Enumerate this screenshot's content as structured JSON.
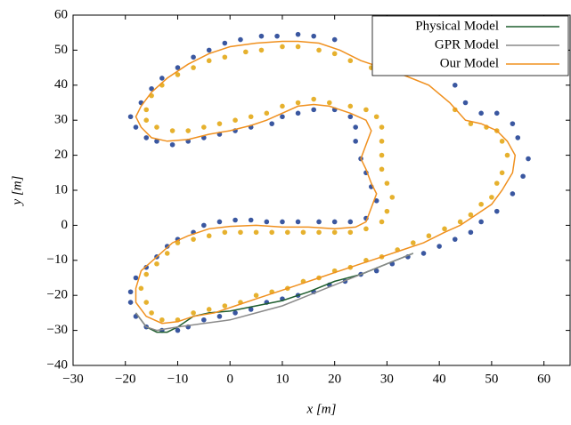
{
  "chart_data": {
    "type": "line",
    "xlabel": "x [m]",
    "ylabel": "y [m]",
    "xlim": [
      -30,
      65
    ],
    "ylim": [
      -40,
      60
    ],
    "xticks": [
      {
        "value": -30,
        "label": "−30"
      },
      {
        "value": -20,
        "label": "−20"
      },
      {
        "value": -10,
        "label": "−10"
      },
      0,
      10,
      20,
      30,
      40,
      50,
      60
    ],
    "yticks": [
      {
        "value": -40,
        "label": "−40"
      },
      {
        "value": -30,
        "label": "−30"
      },
      {
        "value": -20,
        "label": "−20"
      },
      {
        "value": -10,
        "label": "−10"
      },
      0,
      10,
      20,
      30,
      40,
      50,
      60
    ],
    "legend": "upper right",
    "cones": [
      {
        "color": "#3a57a0",
        "x": [
          -17,
          -15,
          -13,
          -10,
          -7,
          -4,
          -1,
          2,
          6,
          9,
          13,
          16,
          20,
          43,
          45,
          48,
          51,
          54,
          55,
          57,
          56,
          54,
          51,
          48,
          46,
          43,
          40,
          37,
          34,
          31,
          28,
          25,
          22,
          19,
          16,
          13,
          10,
          7,
          4,
          1,
          -2,
          -5,
          -8,
          -10,
          -13,
          -16,
          -18,
          -19,
          -19,
          -18,
          -16,
          -14,
          -12,
          -10,
          -7,
          -5,
          -2,
          1,
          4,
          7,
          10,
          13,
          17,
          20,
          23,
          26,
          28,
          27,
          26,
          25,
          24,
          24,
          23,
          20,
          16,
          13,
          10,
          8,
          4,
          1,
          -2,
          -5,
          -8,
          -11,
          -14,
          -16,
          -18,
          -19
        ],
        "y": [
          35,
          39,
          42,
          45,
          48,
          50,
          52,
          53,
          54,
          54,
          54.5,
          54,
          53,
          40,
          35,
          32,
          32,
          29,
          25,
          19,
          14,
          9,
          4,
          1,
          -2,
          -4,
          -6,
          -8,
          -9,
          -11,
          -13,
          -14,
          -16,
          -17,
          -19,
          -20,
          -21,
          -22,
          -24,
          -25,
          -26,
          -27,
          -29,
          -30,
          -30,
          -29,
          -26,
          -22,
          -19,
          -15,
          -12,
          -9,
          -6,
          -4,
          -2,
          0,
          1,
          1.5,
          1.5,
          1,
          1,
          1,
          1,
          1,
          1,
          2,
          7,
          11,
          15,
          19,
          24,
          28,
          31,
          33,
          33,
          32,
          31,
          29,
          28,
          27,
          26,
          25,
          24,
          23,
          24,
          25,
          28,
          31
        ]
      },
      {
        "color": "#e6b12e",
        "x": [
          -16,
          -15,
          -13,
          -10,
          -7,
          -4,
          -1,
          3,
          6,
          10,
          13,
          17,
          20,
          23,
          27,
          43,
          46,
          49,
          51,
          52,
          53,
          52,
          51,
          50,
          48,
          46,
          44,
          41,
          38,
          35,
          32,
          29,
          26,
          23,
          20,
          17,
          14,
          11,
          8,
          5,
          2,
          -1,
          -4,
          -7,
          -10,
          -13,
          -15,
          -16,
          -17,
          -16,
          -14,
          -12,
          -10,
          -7,
          -4,
          -1,
          2,
          5,
          8,
          11,
          14,
          17,
          20,
          23,
          26,
          29,
          30,
          31,
          30,
          29,
          29,
          29,
          29,
          28,
          26,
          23,
          19,
          16,
          13,
          10,
          7,
          4,
          1,
          -2,
          -5,
          -8,
          -11,
          -14,
          -16
        ],
        "y": [
          33,
          37,
          40,
          43,
          45,
          47,
          48,
          49.5,
          50,
          51,
          51,
          50,
          49,
          47,
          45,
          33,
          29,
          28,
          27,
          24,
          20,
          15,
          12,
          8,
          6,
          3,
          1,
          -1,
          -3,
          -5,
          -7,
          -9,
          -10,
          -12,
          -13,
          -15,
          -16,
          -18,
          -19,
          -20,
          -22,
          -23,
          -24,
          -25,
          -27,
          -27,
          -25,
          -22,
          -18,
          -14,
          -11,
          -8,
          -5,
          -4,
          -3,
          -2,
          -2,
          -2,
          -2,
          -2,
          -2,
          -2,
          -2,
          -2,
          -1,
          1,
          4,
          8,
          12,
          16,
          20,
          24,
          28,
          31,
          33,
          34,
          35,
          36,
          35,
          34,
          32,
          31,
          30,
          29,
          28,
          27,
          27,
          28,
          30
        ]
      }
    ],
    "series": [
      {
        "name": "Physical Model",
        "color": "#1f5e2e",
        "x": [
          -18,
          -16,
          -14,
          -12,
          -10,
          -7,
          -4,
          0,
          5,
          10,
          15,
          20,
          25,
          30,
          35
        ],
        "y": [
          -25,
          -29,
          -30.5,
          -30.5,
          -29,
          -26,
          -25,
          -24.5,
          -23,
          -21.5,
          -19,
          -16,
          -14,
          -11,
          -8
        ]
      },
      {
        "name": "GPR Model",
        "color": "#8a8a8a",
        "x": [
          -18,
          -16,
          -14,
          -12,
          -10,
          -5,
          0,
          5,
          10,
          15,
          20,
          25,
          30,
          35
        ],
        "y": [
          -25,
          -29,
          -30,
          -29.5,
          -29,
          -28,
          -27,
          -25,
          -23,
          -20,
          -17,
          -14,
          -11,
          -8
        ]
      },
      {
        "name": "Our Model",
        "color": "#f0901e",
        "x": [
          -17,
          -15,
          -12,
          -8,
          -4,
          0,
          5,
          10,
          13,
          17,
          21,
          25,
          29,
          33,
          38,
          42,
          45,
          48,
          51,
          53,
          54.5,
          54,
          52,
          50,
          47,
          44,
          41,
          37,
          33,
          29,
          25,
          21,
          17,
          13,
          9,
          5,
          1,
          -3,
          -7,
          -10,
          -13,
          -16,
          -18,
          -18,
          -17,
          -14,
          -11,
          -8,
          -4,
          0,
          5,
          10,
          15,
          20,
          24,
          26,
          27,
          28,
          27,
          26,
          25,
          26,
          27,
          26,
          23,
          19,
          16,
          13,
          10,
          7,
          4,
          0,
          -4,
          -8,
          -12,
          -15,
          -17,
          -18,
          -17
        ],
        "y": [
          34,
          38,
          42,
          46,
          49,
          51,
          52,
          52.5,
          52.5,
          52,
          50,
          47,
          45,
          43,
          40,
          35,
          30,
          29,
          27,
          24,
          20,
          15,
          10,
          6,
          3,
          0,
          -2,
          -5,
          -7,
          -9,
          -11,
          -13,
          -15,
          -17,
          -19,
          -21,
          -23,
          -25,
          -26,
          -27.5,
          -28,
          -26,
          -22,
          -18,
          -13,
          -9,
          -5,
          -3,
          -1,
          -0.3,
          0,
          -0.5,
          -0.5,
          -1,
          -0.5,
          1,
          5,
          9,
          12,
          16,
          19,
          23,
          27,
          30,
          32,
          34,
          34.5,
          34,
          32,
          30,
          28.5,
          27,
          26,
          24.5,
          24,
          25,
          28,
          31,
          34
        ]
      }
    ]
  }
}
